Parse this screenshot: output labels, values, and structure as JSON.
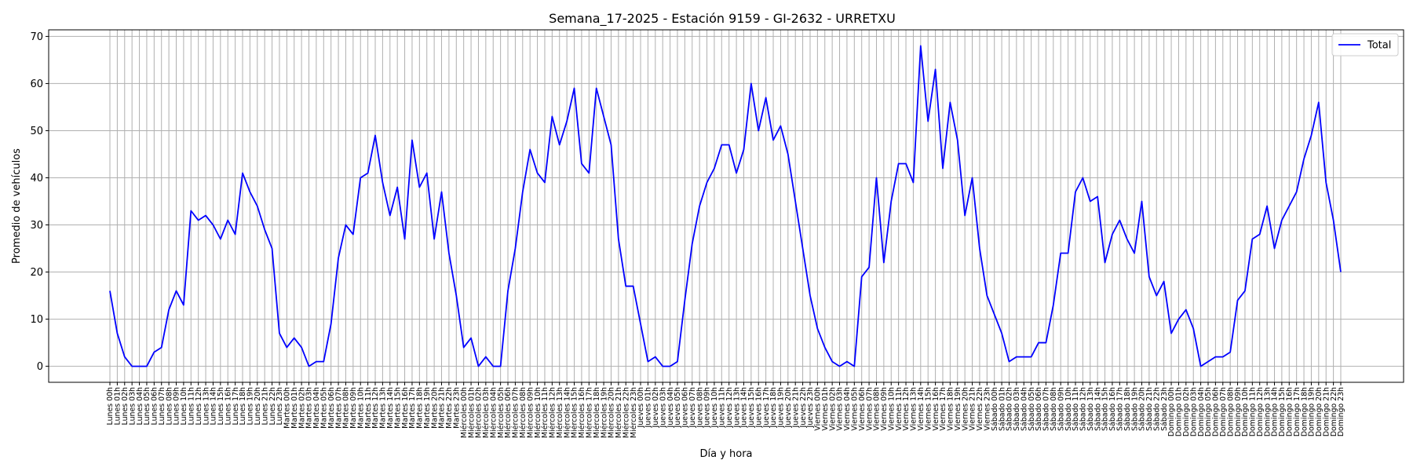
{
  "chart_data": {
    "type": "line",
    "title": "Semana_17-2025 - Estación 9159 - GI-2632  - URRETXU",
    "xlabel": "Día y hora",
    "ylabel": "Promedio de vehículos",
    "ylim": [
      -3.4,
      71.4
    ],
    "yticks": [
      0,
      10,
      20,
      30,
      40,
      50,
      60,
      70
    ],
    "grid": true,
    "legend_position": "top-right",
    "categories": [
      "Lunes 00h",
      "Lunes 01h",
      "Lunes 02h",
      "Lunes 03h",
      "Lunes 04h",
      "Lunes 05h",
      "Lunes 06h",
      "Lunes 07h",
      "Lunes 08h",
      "Lunes 09h",
      "Lunes 10h",
      "Lunes 11h",
      "Lunes 12h",
      "Lunes 13h",
      "Lunes 14h",
      "Lunes 15h",
      "Lunes 16h",
      "Lunes 17h",
      "Lunes 18h",
      "Lunes 19h",
      "Lunes 20h",
      "Lunes 21h",
      "Lunes 22h",
      "Lunes 23h",
      "Martes 00h",
      "Martes 01h",
      "Martes 02h",
      "Martes 03h",
      "Martes 04h",
      "Martes 05h",
      "Martes 06h",
      "Martes 07h",
      "Martes 08h",
      "Martes 09h",
      "Martes 10h",
      "Martes 11h",
      "Martes 12h",
      "Martes 13h",
      "Martes 14h",
      "Martes 15h",
      "Martes 16h",
      "Martes 17h",
      "Martes 18h",
      "Martes 19h",
      "Martes 20h",
      "Martes 21h",
      "Martes 22h",
      "Martes 23h",
      "Miércoles 00h",
      "Miércoles 01h",
      "Miércoles 02h",
      "Miércoles 03h",
      "Miércoles 04h",
      "Miércoles 05h",
      "Miércoles 06h",
      "Miércoles 07h",
      "Miércoles 08h",
      "Miércoles 09h",
      "Miércoles 10h",
      "Miércoles 11h",
      "Miércoles 12h",
      "Miércoles 13h",
      "Miércoles 14h",
      "Miércoles 15h",
      "Miércoles 16h",
      "Miércoles 17h",
      "Miércoles 18h",
      "Miércoles 19h",
      "Miércoles 20h",
      "Miércoles 21h",
      "Miércoles 22h",
      "Miércoles 23h",
      "Jueves 00h",
      "Jueves 01h",
      "Jueves 02h",
      "Jueves 03h",
      "Jueves 04h",
      "Jueves 05h",
      "Jueves 06h",
      "Jueves 07h",
      "Jueves 08h",
      "Jueves 09h",
      "Jueves 10h",
      "Jueves 11h",
      "Jueves 12h",
      "Jueves 13h",
      "Jueves 14h",
      "Jueves 15h",
      "Jueves 16h",
      "Jueves 17h",
      "Jueves 18h",
      "Jueves 19h",
      "Jueves 20h",
      "Jueves 21h",
      "Jueves 22h",
      "Jueves 23h",
      "Viernes 00h",
      "Viernes 01h",
      "Viernes 02h",
      "Viernes 03h",
      "Viernes 04h",
      "Viernes 05h",
      "Viernes 06h",
      "Viernes 07h",
      "Viernes 08h",
      "Viernes 09h",
      "Viernes 10h",
      "Viernes 11h",
      "Viernes 12h",
      "Viernes 13h",
      "Viernes 14h",
      "Viernes 15h",
      "Viernes 16h",
      "Viernes 17h",
      "Viernes 18h",
      "Viernes 19h",
      "Viernes 20h",
      "Viernes 21h",
      "Viernes 22h",
      "Viernes 23h",
      "Sábado 00h",
      "Sábado 01h",
      "Sábado 02h",
      "Sábado 03h",
      "Sábado 04h",
      "Sábado 05h",
      "Sábado 06h",
      "Sábado 07h",
      "Sábado 08h",
      "Sábado 09h",
      "Sábado 10h",
      "Sábado 11h",
      "Sábado 12h",
      "Sábado 13h",
      "Sábado 14h",
      "Sábado 15h",
      "Sábado 16h",
      "Sábado 17h",
      "Sábado 18h",
      "Sábado 19h",
      "Sábado 20h",
      "Sábado 21h",
      "Sábado 22h",
      "Sábado 23h",
      "Domingo 00h",
      "Domingo 01h",
      "Domingo 02h",
      "Domingo 03h",
      "Domingo 04h",
      "Domingo 05h",
      "Domingo 06h",
      "Domingo 07h",
      "Domingo 08h",
      "Domingo 09h",
      "Domingo 10h",
      "Domingo 11h",
      "Domingo 12h",
      "Domingo 13h",
      "Domingo 14h",
      "Domingo 15h",
      "Domingo 16h",
      "Domingo 17h",
      "Domingo 18h",
      "Domingo 19h",
      "Domingo 20h",
      "Domingo 21h",
      "Domingo 22h",
      "Domingo 23h"
    ],
    "series": [
      {
        "name": "Total",
        "color": "#0000ff",
        "values": [
          16,
          7,
          2,
          0,
          0,
          0,
          3,
          4,
          12,
          16,
          13,
          33,
          31,
          32,
          30,
          27,
          31,
          28,
          41,
          37,
          34,
          29,
          25,
          7,
          4,
          6,
          4,
          0,
          1,
          1,
          9,
          23,
          30,
          28,
          40,
          41,
          49,
          39,
          32,
          38,
          27,
          48,
          38,
          41,
          27,
          37,
          24,
          15,
          4,
          6,
          0,
          2,
          0,
          0,
          16,
          25,
          37,
          46,
          41,
          39,
          53,
          47,
          52,
          59,
          43,
          41,
          59,
          53,
          47,
          27,
          17,
          17,
          9,
          1,
          2,
          0,
          0,
          1,
          14,
          26,
          34,
          39,
          42,
          47,
          47,
          41,
          46,
          60,
          50,
          57,
          48,
          51,
          45,
          35,
          25,
          15,
          8,
          4,
          1,
          0,
          1,
          0,
          19,
          21,
          40,
          22,
          35,
          43,
          43,
          39,
          68,
          52,
          63,
          42,
          56,
          48,
          32,
          40,
          25,
          15,
          11,
          7,
          1,
          2,
          2,
          2,
          5,
          5,
          13,
          24,
          24,
          37,
          40,
          35,
          36,
          22,
          28,
          31,
          27,
          24,
          35,
          19,
          15,
          18,
          7,
          10,
          12,
          8,
          0,
          1,
          2,
          2,
          3,
          14,
          16,
          27,
          28,
          34,
          25,
          31,
          34,
          37,
          44,
          49,
          56,
          39,
          31,
          20
        ]
      }
    ]
  }
}
